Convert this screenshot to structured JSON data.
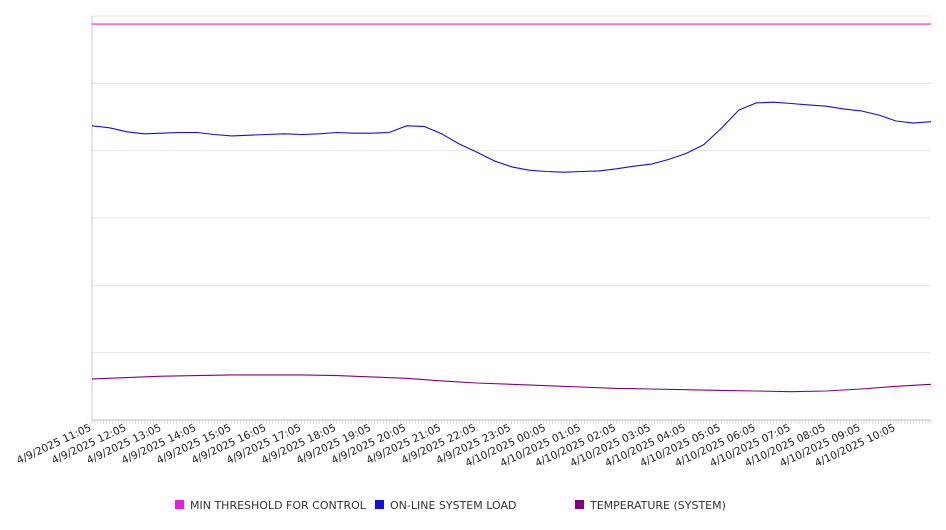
{
  "chart_data": {
    "type": "line",
    "title": "",
    "xlabel": "",
    "ylabel": "",
    "grid": true,
    "legend_position": "bottom",
    "ylim": [
      0,
      600
    ],
    "x_tick_labels": [
      "4/9/2025 11:05",
      "4/9/2025 12:05",
      "4/9/2025 13:05",
      "4/9/2025 14:05",
      "4/9/2025 15:05",
      "4/9/2025 16:05",
      "4/9/2025 17:05",
      "4/9/2025 18:05",
      "4/9/2025 19:05",
      "4/9/2025 20:05",
      "4/9/2025 21:05",
      "4/9/2025 22:05",
      "4/9/2025 23:05",
      "4/10/2025 00:05",
      "4/10/2025 01:05",
      "4/10/2025 02:05",
      "4/10/2025 03:05",
      "4/10/2025 04:05",
      "4/10/2025 05:05",
      "4/10/2025 06:05",
      "4/10/2025 07:05",
      "4/10/2025 08:05",
      "4/10/2025 09:05",
      "4/10/2025 10:05"
    ],
    "x_range_hours": [
      0,
      24
    ],
    "series": [
      {
        "name": "MIN THRESHOLD FOR CONTROL",
        "color": "#e020e0",
        "x": [
          0,
          24
        ],
        "values": [
          588,
          588
        ]
      },
      {
        "name": "ON-LINE SYSTEM LOAD",
        "color": "#1010e0",
        "x": [
          0,
          0.5,
          1,
          1.5,
          2,
          2.5,
          3,
          3.5,
          4,
          4.5,
          5,
          5.5,
          6,
          6.5,
          7,
          7.5,
          8,
          8.5,
          9,
          9.5,
          10,
          10.5,
          11,
          11.5,
          12,
          12.5,
          13,
          13.5,
          14,
          14.5,
          15,
          15.5,
          16,
          16.5,
          17,
          17.5,
          18,
          18.5,
          19,
          19.5,
          20,
          20.5,
          21,
          21.5,
          22,
          22.5,
          23,
          23.5,
          24
        ],
        "values": [
          437,
          434,
          428,
          425,
          426,
          427,
          427,
          424,
          422,
          423,
          424,
          425,
          424,
          425,
          427,
          426,
          426,
          427,
          437,
          436,
          425,
          410,
          398,
          385,
          376,
          371,
          369,
          368,
          369,
          370,
          373,
          377,
          380,
          387,
          396,
          409,
          433,
          460,
          471,
          472,
          470,
          468,
          466,
          462,
          459,
          453,
          444,
          441,
          443
        ]
      },
      {
        "name": "TEMPERATURE (SYSTEM)",
        "color": "#800080",
        "x": [
          0,
          1,
          2,
          3,
          4,
          5,
          6,
          7,
          8,
          9,
          10,
          11,
          12,
          13,
          14,
          15,
          16,
          17,
          18,
          19,
          20,
          21,
          22,
          23,
          24
        ],
        "values": [
          61,
          63,
          65,
          66,
          67,
          67,
          67,
          66,
          64,
          62,
          58,
          55,
          53,
          51,
          49,
          47,
          46,
          45,
          44,
          43,
          42,
          43,
          46,
          50,
          53
        ]
      }
    ]
  }
}
